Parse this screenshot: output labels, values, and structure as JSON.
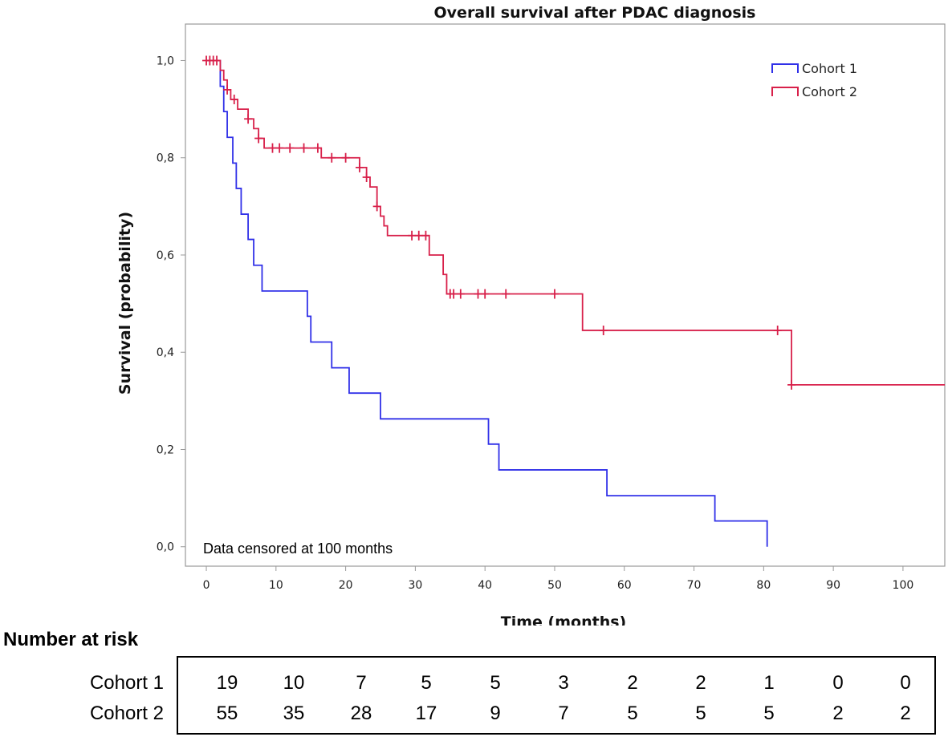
{
  "chart_data": {
    "type": "line",
    "subtype": "kaplan-meier",
    "title": "Overall survival after PDAC diagnosis",
    "xlabel": "Time (months)",
    "ylabel": "Survival (probability)",
    "xlim": [
      -3,
      106
    ],
    "ylim": [
      -0.04,
      1.075
    ],
    "x_ticks": [
      0,
      10,
      20,
      30,
      40,
      50,
      60,
      70,
      80,
      90,
      100
    ],
    "x_tick_labels": [
      "0",
      "10",
      "20",
      "30",
      "40",
      "50",
      "60",
      "70",
      "80",
      "90",
      "100"
    ],
    "y_ticks": [
      0,
      0.2,
      0.4,
      0.6,
      0.8,
      1.0
    ],
    "y_tick_labels": [
      "0,0",
      "0,2",
      "0,4",
      "0,6",
      "0,8",
      "1,0"
    ],
    "legend_position": "top-right",
    "annotation": "Data censored at 100 months",
    "series": [
      {
        "name": "Cohort 1",
        "color": "#3030e8",
        "steps": [
          [
            0,
            1.0
          ],
          [
            2,
            0.947
          ],
          [
            2.5,
            0.895
          ],
          [
            3,
            0.842
          ],
          [
            3.8,
            0.789
          ],
          [
            4.3,
            0.737
          ],
          [
            5,
            0.684
          ],
          [
            6,
            0.632
          ],
          [
            6.8,
            0.579
          ],
          [
            8,
            0.526
          ],
          [
            14.5,
            0.474
          ],
          [
            15,
            0.421
          ],
          [
            18,
            0.368
          ],
          [
            20.5,
            0.316
          ],
          [
            25,
            0.263
          ],
          [
            40.5,
            0.211
          ],
          [
            42,
            0.158
          ],
          [
            57.5,
            0.105
          ],
          [
            73,
            0.053
          ],
          [
            80.5,
            0.0
          ]
        ],
        "end_x": 80.5,
        "censored": []
      },
      {
        "name": "Cohort 2",
        "color": "#d8204a",
        "steps": [
          [
            0,
            1.0
          ],
          [
            2,
            0.98
          ],
          [
            2.5,
            0.96
          ],
          [
            3,
            0.94
          ],
          [
            3.5,
            0.92
          ],
          [
            4.5,
            0.9
          ],
          [
            6,
            0.88
          ],
          [
            6.8,
            0.86
          ],
          [
            7.5,
            0.84
          ],
          [
            8.3,
            0.82
          ],
          [
            16.5,
            0.8
          ],
          [
            22,
            0.78
          ],
          [
            23,
            0.76
          ],
          [
            23.5,
            0.74
          ],
          [
            24.5,
            0.7
          ],
          [
            25,
            0.68
          ],
          [
            25.5,
            0.66
          ],
          [
            26,
            0.64
          ],
          [
            32,
            0.6
          ],
          [
            34,
            0.56
          ],
          [
            34.5,
            0.52
          ],
          [
            54,
            0.445
          ],
          [
            84,
            0.333
          ]
        ],
        "end_x": 106,
        "censored": [
          0,
          0.5,
          1,
          1.5,
          3,
          4,
          6,
          7.5,
          9.5,
          10.5,
          12,
          14,
          16,
          18,
          20,
          22,
          23,
          24.5,
          29.5,
          30.5,
          31.5,
          35,
          35.5,
          36.5,
          39,
          40,
          43,
          50,
          57,
          82,
          84
        ]
      }
    ]
  },
  "risk_table": {
    "title": "Number at risk",
    "rows": [
      {
        "label": "Cohort 1",
        "values": [
          "19",
          "10",
          "7",
          "5",
          "5",
          "3",
          "2",
          "2",
          "1",
          "0",
          "0"
        ]
      },
      {
        "label": "Cohort 2",
        "values": [
          "55",
          "35",
          "28",
          "17",
          "9",
          "7",
          "5",
          "5",
          "5",
          "2",
          "2"
        ]
      }
    ]
  }
}
